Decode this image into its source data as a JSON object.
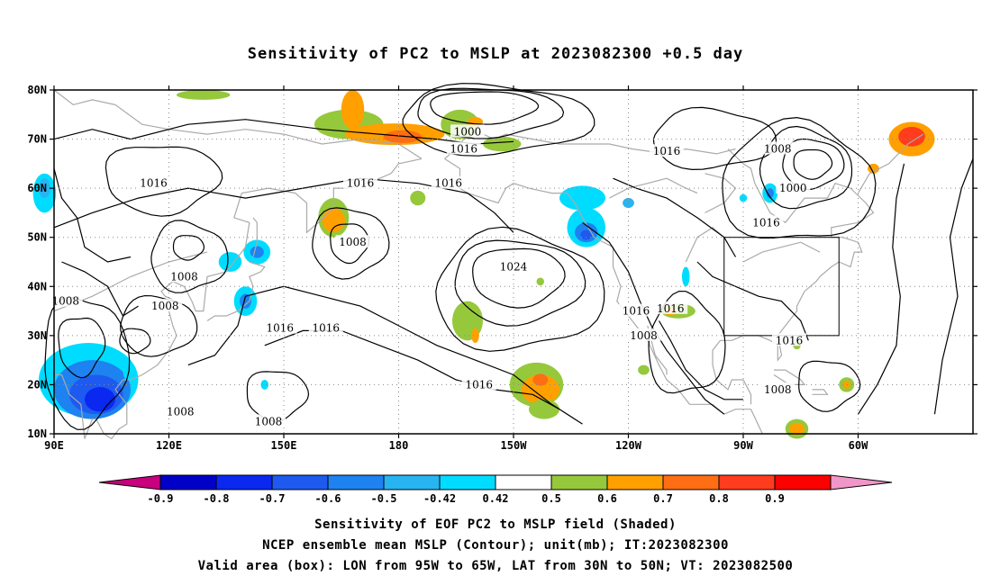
{
  "title": "Sensitivity of PC2 to MSLP at 2023082300 +0.5 day",
  "axes": {
    "lat_labels": [
      "80N",
      "70N",
      "60N",
      "50N",
      "40N",
      "30N",
      "20N",
      "10N"
    ],
    "lon_labels": [
      "90E",
      "120E",
      "150E",
      "180",
      "150W",
      "120W",
      "90W",
      "60W"
    ]
  },
  "contour_labels": [
    {
      "text": "1000",
      "lon": 198,
      "lat": 71.5
    },
    {
      "text": "1016",
      "lon": 197,
      "lat": 68
    },
    {
      "text": "1016",
      "lon": 250,
      "lat": 67.5
    },
    {
      "text": "1008",
      "lon": 279,
      "lat": 68
    },
    {
      "text": "1016",
      "lon": 116,
      "lat": 61
    },
    {
      "text": "1016",
      "lon": 170,
      "lat": 61
    },
    {
      "text": "1016",
      "lon": 193,
      "lat": 61
    },
    {
      "text": "1000",
      "lon": 283,
      "lat": 60
    },
    {
      "text": "1008",
      "lon": 168,
      "lat": 49
    },
    {
      "text": "1016",
      "lon": 276,
      "lat": 53
    },
    {
      "text": "1024",
      "lon": 210,
      "lat": 44
    },
    {
      "text": "1008",
      "lon": 124,
      "lat": 42
    },
    {
      "text": "1008",
      "lon": 93,
      "lat": 37
    },
    {
      "text": "1008",
      "lon": 119,
      "lat": 36
    },
    {
      "text": "1016",
      "lon": 242,
      "lat": 35
    },
    {
      "text": "1016",
      "lon": 251,
      "lat": 35.5
    },
    {
      "text": "1016",
      "lon": 149,
      "lat": 31.5
    },
    {
      "text": "1016",
      "lon": 161,
      "lat": 31.5
    },
    {
      "text": "1008",
      "lon": 244,
      "lat": 30
    },
    {
      "text": "1016",
      "lon": 282,
      "lat": 29
    },
    {
      "text": "1016",
      "lon": 201,
      "lat": 20
    },
    {
      "text": "1008",
      "lon": 279,
      "lat": 19
    },
    {
      "text": "1008",
      "lon": 123,
      "lat": 14.5
    },
    {
      "text": "1008",
      "lon": 146,
      "lat": 12.5
    }
  ],
  "colorbar": {
    "labels": [
      "-0.9",
      "-0.8",
      "-0.7",
      "-0.6",
      "-0.5",
      "-0.42",
      "0.42",
      "0.5",
      "0.6",
      "0.7",
      "0.8",
      "0.9"
    ],
    "colors": [
      "#c8007d",
      "#0000c8",
      "#0a28f0",
      "#1e5af0",
      "#1e82f0",
      "#28b4f0",
      "#00dcff",
      "#ffffff",
      "#96c83c",
      "#ffa000",
      "#ff6e14",
      "#ff3c1e",
      "#ff0000",
      "#f096c8"
    ]
  },
  "shading": [
    {
      "lon": 87.5,
      "lat": 59,
      "rx": 3,
      "ry": 4,
      "color": "#00dcff"
    },
    {
      "lon": 87.5,
      "lat": 60,
      "rx": 1.5,
      "ry": 2,
      "color": "#28b4f0"
    },
    {
      "lon": 99,
      "lat": 21,
      "rx": 13,
      "ry": 7.5,
      "color": "#00dcff"
    },
    {
      "lon": 100,
      "lat": 19,
      "rx": 10,
      "ry": 6,
      "color": "#1e82f0"
    },
    {
      "lon": 101,
      "lat": 18,
      "rx": 7,
      "ry": 4,
      "color": "#1e5af0"
    },
    {
      "lon": 102,
      "lat": 17,
      "rx": 4,
      "ry": 2.5,
      "color": "#0a28f0"
    },
    {
      "lon": 136,
      "lat": 45,
      "rx": 3,
      "ry": 2,
      "color": "#00dcff"
    },
    {
      "lon": 143,
      "lat": 47,
      "rx": 3.5,
      "ry": 2.5,
      "color": "#00dcff"
    },
    {
      "lon": 143,
      "lat": 47,
      "rx": 1.8,
      "ry": 1.2,
      "color": "#1e82f0"
    },
    {
      "lon": 140,
      "lat": 37,
      "rx": 3,
      "ry": 3,
      "color": "#00dcff"
    },
    {
      "lon": 140,
      "lat": 37,
      "rx": 1.5,
      "ry": 1.5,
      "color": "#1e82f0"
    },
    {
      "lon": 163,
      "lat": 54,
      "rx": 4,
      "ry": 4,
      "color": "#96c83c"
    },
    {
      "lon": 163,
      "lat": 53.5,
      "rx": 3,
      "ry": 2.5,
      "color": "#ffa000"
    },
    {
      "lon": 167,
      "lat": 73,
      "rx": 9,
      "ry": 3,
      "color": "#96c83c"
    },
    {
      "lon": 179,
      "lat": 71,
      "rx": 13,
      "ry": 2.2,
      "color": "#ffa000"
    },
    {
      "lon": 168,
      "lat": 76,
      "rx": 3,
      "ry": 4,
      "color": "#ffa000"
    },
    {
      "lon": 181,
      "lat": 70.5,
      "rx": 5,
      "ry": 1.3,
      "color": "#ff6e14"
    },
    {
      "lon": 196,
      "lat": 73,
      "rx": 5,
      "ry": 3,
      "color": "#96c83c"
    },
    {
      "lon": 200,
      "lat": 73.5,
      "rx": 2,
      "ry": 1,
      "color": "#ffa000"
    },
    {
      "lon": 129,
      "lat": 79,
      "rx": 7,
      "ry": 1,
      "color": "#96c83c"
    },
    {
      "lon": 185,
      "lat": 58,
      "rx": 2,
      "ry": 1.5,
      "color": "#96c83c"
    },
    {
      "lon": 207,
      "lat": 69,
      "rx": 5,
      "ry": 1.5,
      "color": "#96c83c"
    },
    {
      "lon": 228,
      "lat": 58,
      "rx": 6,
      "ry": 2.5,
      "color": "#00dcff"
    },
    {
      "lon": 229,
      "lat": 52,
      "rx": 5,
      "ry": 4,
      "color": "#00dcff"
    },
    {
      "lon": 229,
      "lat": 51,
      "rx": 3,
      "ry": 2,
      "color": "#1e82f0"
    },
    {
      "lon": 229,
      "lat": 50.5,
      "rx": 1.5,
      "ry": 1,
      "color": "#1e5af0"
    },
    {
      "lon": 240,
      "lat": 57,
      "rx": 1.5,
      "ry": 1,
      "color": "#28b4f0"
    },
    {
      "lon": 277,
      "lat": 59,
      "rx": 2,
      "ry": 2,
      "color": "#00dcff"
    },
    {
      "lon": 277,
      "lat": 59,
      "rx": 1,
      "ry": 1,
      "color": "#1e82f0"
    },
    {
      "lon": 270,
      "lat": 58,
      "rx": 1,
      "ry": 0.8,
      "color": "#00dcff"
    },
    {
      "lon": 255,
      "lat": 42,
      "rx": 1,
      "ry": 2,
      "color": "#00dcff"
    },
    {
      "lon": 198,
      "lat": 33,
      "rx": 4,
      "ry": 4,
      "color": "#96c83c"
    },
    {
      "lon": 200,
      "lat": 30,
      "rx": 1,
      "ry": 1.5,
      "color": "#ffa000"
    },
    {
      "lon": 216,
      "lat": 20,
      "rx": 7,
      "ry": 4.5,
      "color": "#96c83c"
    },
    {
      "lon": 217,
      "lat": 19,
      "rx": 5,
      "ry": 3,
      "color": "#ffa000"
    },
    {
      "lon": 217,
      "lat": 21,
      "rx": 2,
      "ry": 1.2,
      "color": "#ff6e14"
    },
    {
      "lon": 218,
      "lat": 15,
      "rx": 4,
      "ry": 2,
      "color": "#96c83c"
    },
    {
      "lon": 217,
      "lat": 41,
      "rx": 1,
      "ry": 0.8,
      "color": "#96c83c"
    },
    {
      "lon": 253,
      "lat": 35,
      "rx": 4.5,
      "ry": 1.5,
      "color": "#96c83c"
    },
    {
      "lon": 251,
      "lat": 35,
      "rx": 1.5,
      "ry": 1,
      "color": "#ffa000"
    },
    {
      "lon": 244,
      "lat": 23,
      "rx": 1.5,
      "ry": 1,
      "color": "#96c83c"
    },
    {
      "lon": 284,
      "lat": 11,
      "rx": 3,
      "ry": 2,
      "color": "#96c83c"
    },
    {
      "lon": 284,
      "lat": 11,
      "rx": 2,
      "ry": 1.2,
      "color": "#ffa000"
    },
    {
      "lon": 297,
      "lat": 20,
      "rx": 2,
      "ry": 1.5,
      "color": "#96c83c"
    },
    {
      "lon": 297,
      "lat": 20,
      "rx": 1,
      "ry": 0.8,
      "color": "#ffa000"
    },
    {
      "lon": 314,
      "lat": 70,
      "rx": 6,
      "ry": 3.5,
      "color": "#ffa000"
    },
    {
      "lon": 314,
      "lat": 70.5,
      "rx": 3.5,
      "ry": 2,
      "color": "#ff3c1e"
    },
    {
      "lon": 304,
      "lat": 64,
      "rx": 1.5,
      "ry": 1,
      "color": "#ffa000"
    },
    {
      "lon": 284,
      "lat": 28,
      "rx": 1,
      "ry": 0.8,
      "color": "#96c83c"
    },
    {
      "lon": 145,
      "lat": 20,
      "rx": 1,
      "ry": 1,
      "color": "#00dcff"
    },
    {
      "lon": 109,
      "lat": 23,
      "rx": 1,
      "ry": 2,
      "color": "#00dcff"
    }
  ],
  "valid_box": {
    "lon_min": 265,
    "lon_max": 295,
    "lat_min": 30,
    "lat_max": 50
  },
  "captions": [
    "Sensitivity of EOF PC2 to MSLP field (Shaded)",
    "NCEP ensemble mean MSLP (Contour); unit(mb); IT:2023082300",
    "Valid area (box): LON from 95W to 65W, LAT from 30N to 50N; VT: 2023082500"
  ]
}
